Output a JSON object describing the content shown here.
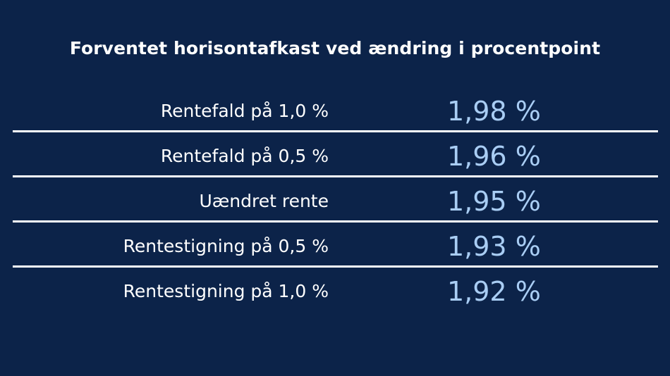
{
  "title": "Forventet horisontafkast ved ændring i procentpoint",
  "rows": [
    {
      "label": "Rentefald på 1,0 %",
      "value": "1,98 %"
    },
    {
      "label": "Rentefald på 0,5 %",
      "value": "1,96 %"
    },
    {
      "label": "Uændret rente",
      "value": "1,95 %"
    },
    {
      "label": "Rentestigning på 0,5 %",
      "value": "1,93 %"
    },
    {
      "label": "Rentestigning på 1,0 %",
      "value": "1,92 %"
    }
  ],
  "colors": {
    "background": "#0c2349",
    "label_text": "#ffffff",
    "value_text": "#a9cdf4",
    "divider": "#ffffff"
  }
}
